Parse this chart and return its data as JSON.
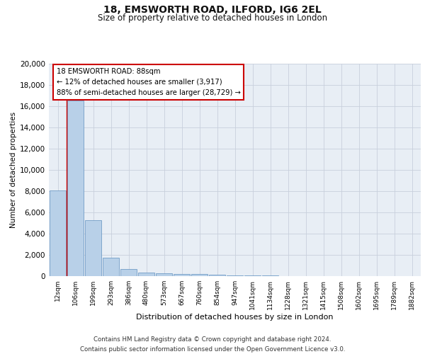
{
  "title_line1": "18, EMSWORTH ROAD, ILFORD, IG6 2EL",
  "title_line2": "Size of property relative to detached houses in London",
  "xlabel": "Distribution of detached houses by size in London",
  "ylabel": "Number of detached properties",
  "categories": [
    "12sqm",
    "106sqm",
    "199sqm",
    "293sqm",
    "386sqm",
    "480sqm",
    "573sqm",
    "667sqm",
    "760sqm",
    "854sqm",
    "947sqm",
    "1041sqm",
    "1134sqm",
    "1228sqm",
    "1321sqm",
    "1415sqm",
    "1508sqm",
    "1602sqm",
    "1695sqm",
    "1789sqm",
    "1882sqm"
  ],
  "bar_heights": [
    8100,
    16500,
    5300,
    1750,
    700,
    350,
    300,
    220,
    200,
    130,
    90,
    60,
    40,
    30,
    20,
    15,
    10,
    8,
    5,
    4,
    3
  ],
  "bar_color": "#b8d0e8",
  "bar_edge_color": "#6090c0",
  "annotation_box_text": "18 EMSWORTH ROAD: 88sqm\n← 12% of detached houses are smaller (3,917)\n88% of semi-detached houses are larger (28,729) →",
  "annotation_box_color": "#cc0000",
  "vline_x": 1,
  "vline_color": "#cc0000",
  "ylim": [
    0,
    20000
  ],
  "yticks": [
    0,
    2000,
    4000,
    6000,
    8000,
    10000,
    12000,
    14000,
    16000,
    18000,
    20000
  ],
  "grid_color": "#c8d0dc",
  "background_color": "#e8eef5",
  "footer_line1": "Contains HM Land Registry data © Crown copyright and database right 2024.",
  "footer_line2": "Contains public sector information licensed under the Open Government Licence v3.0."
}
